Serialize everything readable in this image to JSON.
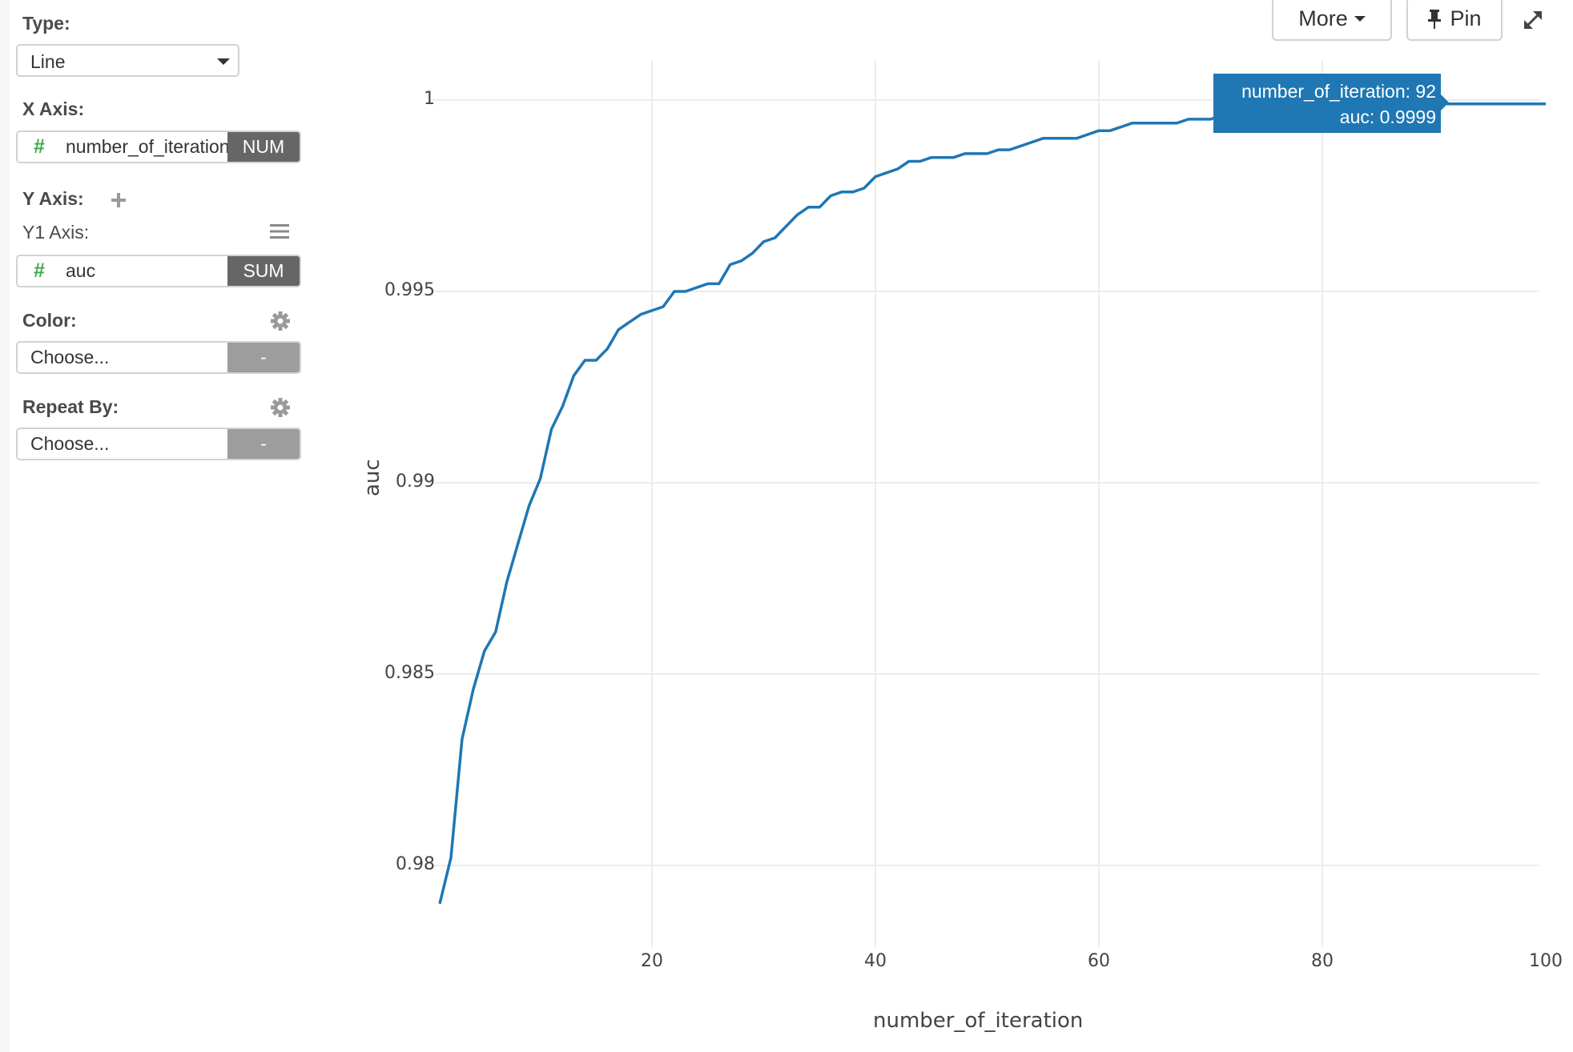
{
  "sidebar": {
    "type_label": "Type:",
    "type_value": "Line",
    "x_axis_label": "X Axis:",
    "x_axis_field": "number_of_iteration",
    "x_axis_tag": "NUM",
    "y_axis_label": "Y Axis:",
    "y1_axis_label": "Y1 Axis:",
    "y1_field": "auc",
    "y1_tag": "SUM",
    "color_label": "Color:",
    "color_placeholder": "Choose...",
    "color_tag": "-",
    "repeat_label": "Repeat By:",
    "repeat_placeholder": "Choose...",
    "repeat_tag": "-",
    "field_type_icon": "#"
  },
  "toolbar": {
    "more_label": "More",
    "pin_label": "Pin"
  },
  "tooltip": {
    "line1": "number_of_iteration: 92",
    "line2": "auc: 0.9999"
  },
  "colors": {
    "line": "#1f77b4",
    "grid": "#ececec",
    "tag_dark": "#666666",
    "tag_light": "#9d9d9d",
    "hash_green": "#3fa94a"
  },
  "chart_data": {
    "type": "line",
    "title": "",
    "xlabel": "number_of_iteration",
    "ylabel": "auc",
    "xlim": [
      1,
      100
    ],
    "ylim": [
      0.9789,
      1.0003
    ],
    "x_ticks": [
      20,
      40,
      60,
      80,
      100
    ],
    "y_ticks": [
      0.98,
      0.985,
      0.99,
      0.995,
      1
    ],
    "y_tick_labels": [
      "0.98",
      "0.985",
      "0.99",
      "0.995",
      "1"
    ],
    "grid": true,
    "legend": "none",
    "hover": {
      "x": 92,
      "y": 0.9999
    },
    "series": [
      {
        "name": "auc",
        "x": [
          1,
          2,
          3,
          4,
          5,
          6,
          7,
          8,
          9,
          10,
          11,
          12,
          13,
          14,
          15,
          16,
          17,
          18,
          19,
          20,
          21,
          22,
          23,
          24,
          25,
          26,
          27,
          28,
          29,
          30,
          31,
          32,
          33,
          34,
          35,
          36,
          37,
          38,
          39,
          40,
          41,
          42,
          43,
          44,
          45,
          46,
          47,
          48,
          49,
          50,
          51,
          52,
          53,
          54,
          55,
          56,
          57,
          58,
          59,
          60,
          61,
          62,
          63,
          64,
          65,
          66,
          67,
          68,
          69,
          70,
          71,
          72,
          73,
          74,
          75,
          76,
          77,
          78,
          79,
          80,
          81,
          82,
          83,
          84,
          85,
          86,
          87,
          88,
          89,
          90,
          91,
          92,
          93,
          94,
          95,
          96,
          97,
          98,
          99,
          100
        ],
        "values": [
          0.979,
          0.9802,
          0.9833,
          0.9846,
          0.9856,
          0.9861,
          0.9874,
          0.9884,
          0.9894,
          0.9901,
          0.9914,
          0.992,
          0.9928,
          0.9932,
          0.9932,
          0.9935,
          0.994,
          0.9942,
          0.9944,
          0.9945,
          0.9946,
          0.995,
          0.995,
          0.9951,
          0.9952,
          0.9952,
          0.9957,
          0.9958,
          0.996,
          0.9963,
          0.9964,
          0.9967,
          0.997,
          0.9972,
          0.9972,
          0.9975,
          0.9976,
          0.9976,
          0.9977,
          0.998,
          0.9981,
          0.9982,
          0.9984,
          0.9984,
          0.9985,
          0.9985,
          0.9985,
          0.9986,
          0.9986,
          0.9986,
          0.9987,
          0.9987,
          0.9988,
          0.9989,
          0.999,
          0.999,
          0.999,
          0.999,
          0.9991,
          0.9992,
          0.9992,
          0.9993,
          0.9994,
          0.9994,
          0.9994,
          0.9994,
          0.9994,
          0.9995,
          0.9995,
          0.9995,
          0.9996,
          0.9997,
          0.9997,
          0.9997,
          0.9998,
          0.9998,
          0.9998,
          0.9998,
          0.9998,
          0.9998,
          0.9999,
          0.9999,
          0.9999,
          0.9999,
          0.9999,
          0.9999,
          0.9999,
          0.9999,
          0.9999,
          0.9999,
          0.9999,
          0.9999,
          0.9999,
          0.9999,
          0.9999,
          0.9999,
          0.9999,
          0.9999,
          0.9999,
          0.9999
        ]
      }
    ]
  }
}
